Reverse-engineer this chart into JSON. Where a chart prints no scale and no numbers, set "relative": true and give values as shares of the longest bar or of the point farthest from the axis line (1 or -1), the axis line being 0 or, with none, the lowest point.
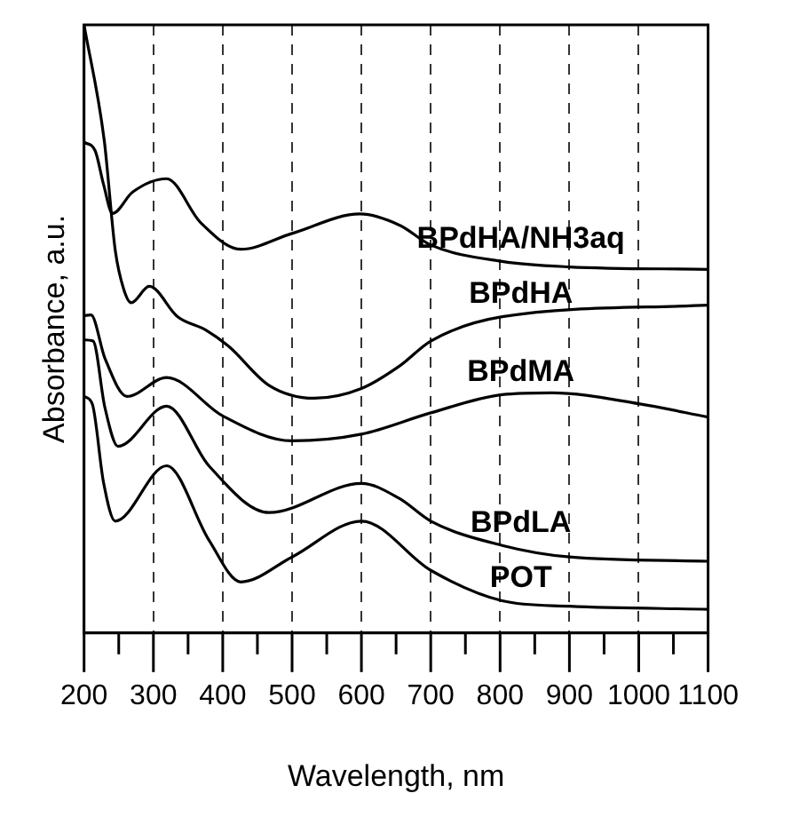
{
  "chart_data": {
    "type": "line",
    "xlabel": "Wavelength, nm",
    "ylabel": "Absorbance, a.u.",
    "relative": true,
    "grid": "x",
    "marker": "none",
    "line_style": "solid",
    "legend": false,
    "xlim": [
      200,
      1100
    ],
    "xticks": [
      200,
      {
        "value": 250,
        "label": null
      },
      300,
      {
        "value": 350,
        "label": null
      },
      400,
      {
        "value": 450,
        "label": null
      },
      500,
      {
        "value": 550,
        "label": null
      },
      600,
      {
        "value": 650,
        "label": null
      },
      700,
      {
        "value": 750,
        "label": null
      },
      800,
      {
        "value": 850,
        "label": null
      },
      900,
      {
        "value": 950,
        "label": null
      },
      1000,
      {
        "value": 1050,
        "label": null
      },
      1100
    ],
    "series": [
      {
        "name": "BPdHA/NH3aq",
        "color": "#000000",
        "x": [
          200,
          216,
          228,
          241,
          270,
          319,
          368,
          426,
          500,
          598,
          656,
          700,
          803,
          900,
          1100
        ],
        "values": [
          0.807,
          0.793,
          0.738,
          0.69,
          0.725,
          0.747,
          0.675,
          0.631,
          0.657,
          0.689,
          0.67,
          0.638,
          0.611,
          0.602,
          0.598
        ]
      },
      {
        "name": "BPdHA",
        "color": "#000000",
        "x": [
          200,
          229,
          245,
          257,
          268,
          294,
          335,
          376,
          409,
          467,
          532,
          600,
          655,
          700,
          803,
          1100
        ],
        "values": [
          1.0,
          0.811,
          0.629,
          0.566,
          0.543,
          0.57,
          0.52,
          0.498,
          0.471,
          0.407,
          0.386,
          0.402,
          0.439,
          0.48,
          0.52,
          0.539
        ]
      },
      {
        "name": "BPdMA",
        "color": "#000000",
        "x": [
          200,
          210,
          230,
          262,
          319,
          400,
          500,
          600,
          700,
          803,
          875,
          1000,
          1100
        ],
        "values": [
          0.522,
          0.523,
          0.452,
          0.389,
          0.42,
          0.357,
          0.316,
          0.327,
          0.362,
          0.392,
          0.395,
          0.377,
          0.355
        ]
      },
      {
        "name": "BPdLA",
        "color": "#000000",
        "x": [
          200,
          213,
          230,
          249,
          319,
          380,
          467,
          600,
          655,
          700,
          803,
          900,
          1100
        ],
        "values": [
          0.482,
          0.48,
          0.371,
          0.307,
          0.373,
          0.275,
          0.198,
          0.246,
          0.221,
          0.184,
          0.144,
          0.125,
          0.118
        ]
      },
      {
        "name": "POT",
        "color": "#000000",
        "x": [
          200,
          212,
          228,
          245,
          319,
          380,
          426,
          500,
          600,
          700,
          803,
          900,
          1100
        ],
        "values": [
          0.389,
          0.376,
          0.248,
          0.184,
          0.275,
          0.153,
          0.084,
          0.125,
          0.184,
          0.103,
          0.053,
          0.044,
          0.039
        ]
      }
    ]
  }
}
